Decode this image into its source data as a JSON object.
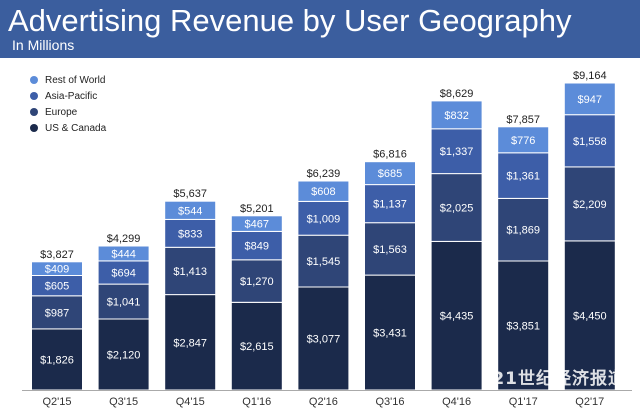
{
  "header": {
    "title": "Advertising Revenue by User Geography",
    "subtitle": "In Millions"
  },
  "colors": {
    "header_bg": "#3b5e9e",
    "us_canada": "#1b2a4b",
    "europe": "#2f4577",
    "asia_pacific": "#3d5ea8",
    "rest_of_world": "#5c8cd9"
  },
  "legend": [
    {
      "label": "Rest of World",
      "color": "#5c8cd9"
    },
    {
      "label": "Asia-Pacific",
      "color": "#3d5ea8"
    },
    {
      "label": "Europe",
      "color": "#2f4577"
    },
    {
      "label": "US & Canada",
      "color": "#1b2a4b"
    }
  ],
  "watermark": "21世纪经济报道",
  "chart_data": {
    "type": "bar",
    "stacked": true,
    "title": "Advertising Revenue by User Geography",
    "subtitle": "In Millions",
    "categories": [
      "Q2'15",
      "Q3'15",
      "Q4'15",
      "Q1'16",
      "Q2'16",
      "Q3'16",
      "Q4'16",
      "Q1'17",
      "Q2'17"
    ],
    "series": [
      {
        "name": "US & Canada",
        "color": "#1b2a4b",
        "values": [
          1826,
          2120,
          2847,
          2615,
          3077,
          3431,
          4435,
          3851,
          4450
        ]
      },
      {
        "name": "Europe",
        "color": "#2f4577",
        "values": [
          987,
          1041,
          1413,
          1270,
          1545,
          1563,
          2025,
          1869,
          2209
        ]
      },
      {
        "name": "Asia-Pacific",
        "color": "#3d5ea8",
        "values": [
          605,
          694,
          833,
          849,
          1009,
          1137,
          1337,
          1361,
          1558
        ]
      },
      {
        "name": "Rest of World",
        "color": "#5c8cd9",
        "values": [
          409,
          444,
          544,
          467,
          608,
          685,
          832,
          776,
          947
        ]
      }
    ],
    "totals": [
      3827,
      4299,
      5637,
      5201,
      6239,
      6816,
      8629,
      7857,
      9164
    ],
    "total_labels": [
      "$3,827",
      "$4,299",
      "$5,637",
      "$5,201",
      "$6,239",
      "$6,816",
      "$8,629",
      "$7,857",
      "$9,164"
    ],
    "value_labels": [
      [
        "$1,826",
        "$2,120",
        "$2,847",
        "$2,615",
        "$3,077",
        "$3,431",
        "$4,435",
        "$3,851",
        "$4,450"
      ],
      [
        "$987",
        "$1,041",
        "$1,413",
        "$1,270",
        "$1,545",
        "$1,563",
        "$2,025",
        "$1,869",
        "$2,209"
      ],
      [
        "$605",
        "$694",
        "$833",
        "$849",
        "$1,009",
        "$1,137",
        "$1,337",
        "$1,361",
        "$1,558"
      ],
      [
        "$409",
        "$444",
        "$544",
        "$467",
        "$608",
        "$685",
        "$832",
        "$776",
        "$947"
      ]
    ],
    "legend_position": "top-left",
    "grid": false
  }
}
